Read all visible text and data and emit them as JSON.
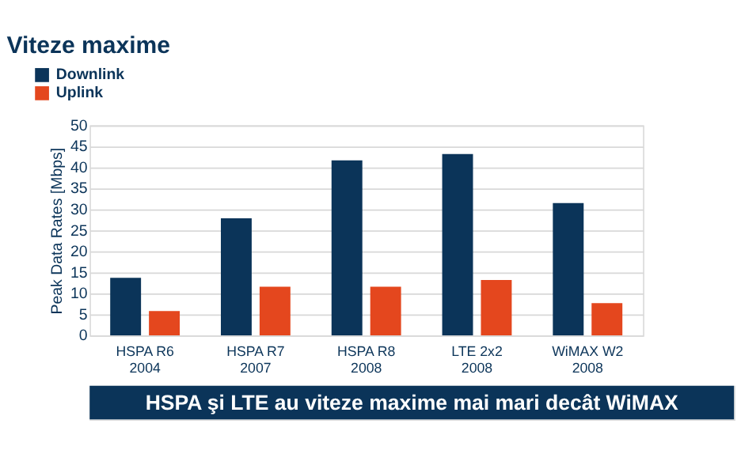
{
  "chart_data": {
    "type": "bar",
    "title": "Viteze maxime",
    "ylabel": "Peak Data Rates [Mbps]",
    "categories": [
      "HSPA R6\n2004",
      "HSPA R7\n2007",
      "HSPA R8\n2008",
      "LTE 2x2\n2008",
      "WiMAX W2\n2008"
    ],
    "series": [
      {
        "name": "Downlink",
        "color": "#0b3459",
        "values": [
          13.7,
          27.9,
          41.7,
          43.2,
          31.5
        ]
      },
      {
        "name": "Uplink",
        "color": "#e4471e",
        "values": [
          5.8,
          11.6,
          11.6,
          13.2,
          7.7
        ]
      }
    ],
    "ylim": [
      0,
      50
    ],
    "yticks": [
      0,
      5,
      10,
      15,
      20,
      25,
      30,
      35,
      40,
      45,
      50
    ],
    "grid": "y",
    "legend": "top left",
    "annotations": [
      "HSPA şi LTE au viteze maxime mai mari decât WiMAX"
    ]
  }
}
